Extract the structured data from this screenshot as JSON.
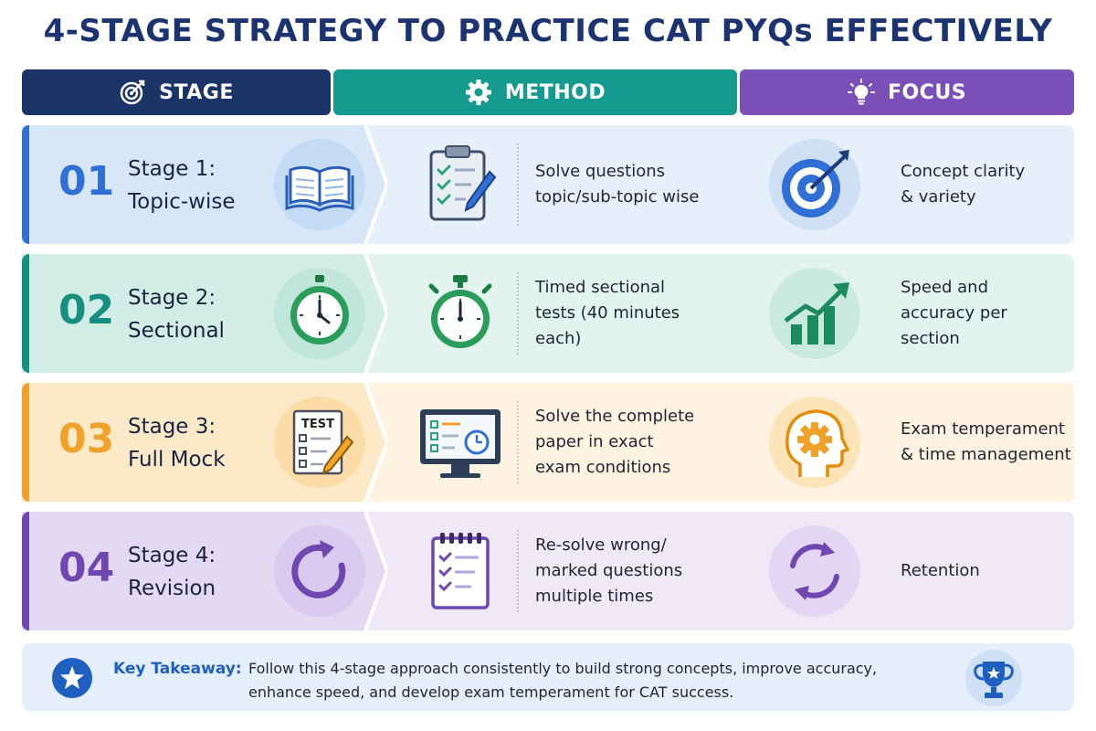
{
  "title": "4-STAGE STRATEGY TO PRACTICE CAT PYQs EFFECTIVELY",
  "headers": {
    "stage": {
      "label": "STAGE",
      "icon": "target-icon",
      "color": "#1b3468"
    },
    "method": {
      "label": "METHOD",
      "icon": "gear-icon",
      "color": "#159a8f"
    },
    "focus": {
      "label": "FOCUS",
      "icon": "lightbulb-icon",
      "color": "#7b4fb8"
    }
  },
  "rows": [
    {
      "number": "01",
      "stage_line1": "Stage 1:",
      "stage_line2": "Topic-wise",
      "stage_icon": "book-icon",
      "method_icon": "clipboard-checklist-icon",
      "method_lines": [
        "Solve questions",
        "topic/sub-topic wise"
      ],
      "focus_icon": "target-arrow-icon",
      "focus_lines": [
        "Concept clarity",
        "& variety"
      ],
      "accent": "#2f6fd6",
      "band": "#e6f0fb"
    },
    {
      "number": "02",
      "stage_line1": "Stage 2:",
      "stage_line2": "Sectional",
      "stage_icon": "clock-icon",
      "method_icon": "stopwatch-icon",
      "method_lines": [
        "Timed sectional",
        "tests (40 minutes",
        "each)"
      ],
      "focus_icon": "growth-chart-icon",
      "focus_lines": [
        "Speed and",
        "accuracy per",
        "section"
      ],
      "accent": "#178f80",
      "band": "#e3f4ef"
    },
    {
      "number": "03",
      "stage_line1": "Stage 3:",
      "stage_line2": "Full Mock",
      "stage_icon": "test-paper-icon",
      "stage_icon_text": "TEST",
      "method_icon": "monitor-timer-icon",
      "method_lines": [
        "Solve the complete",
        "paper in exact",
        "exam conditions"
      ],
      "focus_icon": "head-gear-icon",
      "focus_lines": [
        "Exam temperament",
        "& time management"
      ],
      "accent": "#f0a12a",
      "band": "#fdf3e0"
    },
    {
      "number": "04",
      "stage_line1": "Stage 4:",
      "stage_line2": "Revision",
      "stage_icon": "refresh-icon",
      "method_icon": "notepad-checklist-icon",
      "method_lines": [
        "Re-solve wrong/",
        "marked questions",
        "multiple times"
      ],
      "focus_icon": "cycle-arrows-icon",
      "focus_lines": [
        "Retention"
      ],
      "accent": "#6f47b0",
      "band": "#efe9f7"
    }
  ],
  "takeaway": {
    "label": "Key Takeaway:",
    "text_line1": "Follow this 4-stage approach consistently to build strong concepts, improve accuracy,",
    "text_line2": "enhance speed, and develop exam temperament for CAT success.",
    "left_icon": "star-icon",
    "right_icon": "trophy-icon"
  }
}
